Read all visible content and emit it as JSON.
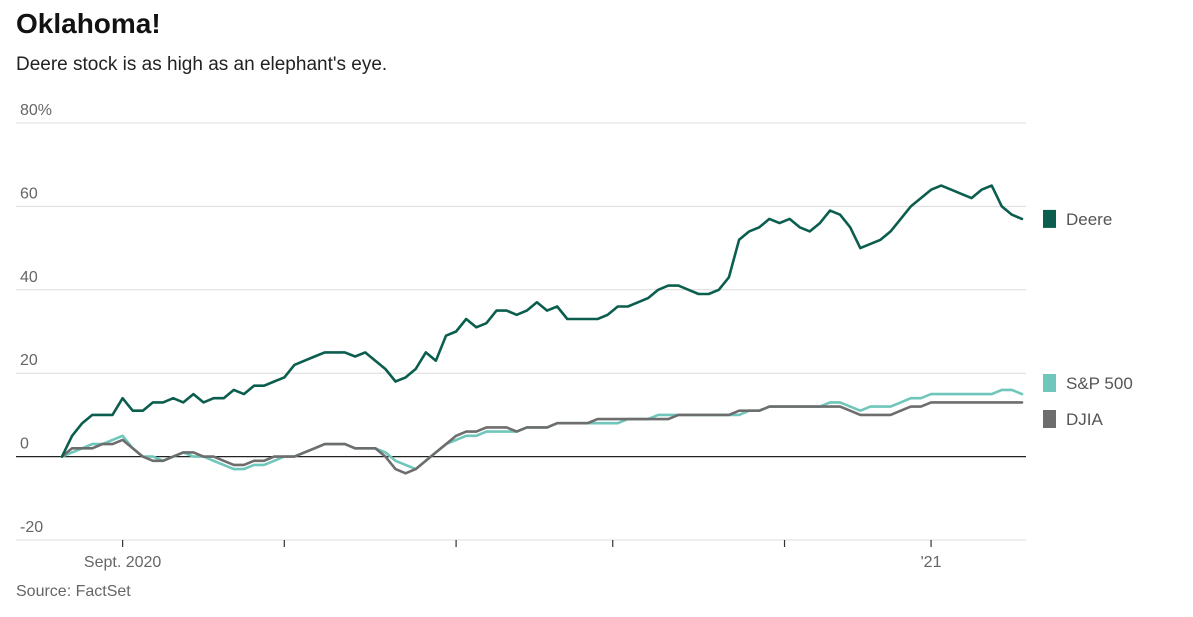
{
  "header": {
    "title": "Oklahoma!",
    "subtitle": "Deere stock is as high as an elephant's eye."
  },
  "footer": {
    "source": "Source: FactSet"
  },
  "chart_data": {
    "type": "line",
    "title": "Oklahoma!",
    "subtitle": "Deere stock is as high as an elephant's eye.",
    "ylim": [
      -20,
      80
    ],
    "yticks": [
      {
        "value": 80,
        "label": "80%"
      },
      {
        "value": 60,
        "label": "60"
      },
      {
        "value": 40,
        "label": "40"
      },
      {
        "value": 20,
        "label": "20"
      },
      {
        "value": 0,
        "label": "0"
      },
      {
        "value": -20,
        "label": "-20"
      }
    ],
    "x_domain": [
      0,
      190
    ],
    "xticks": [
      {
        "value": 12,
        "label": "Sept. 2020"
      },
      {
        "value": 44,
        "label": ""
      },
      {
        "value": 78,
        "label": ""
      },
      {
        "value": 109,
        "label": ""
      },
      {
        "value": 143,
        "label": ""
      },
      {
        "value": 172,
        "label": "'21"
      }
    ],
    "grid": true,
    "legend": "right",
    "series": [
      {
        "name": "Deere",
        "color": "#0b5e4e",
        "x": [
          0,
          2,
          4,
          6,
          8,
          10,
          12,
          14,
          16,
          18,
          20,
          22,
          24,
          26,
          28,
          30,
          32,
          34,
          36,
          38,
          40,
          42,
          44,
          46,
          48,
          50,
          52,
          54,
          56,
          58,
          60,
          62,
          64,
          66,
          68,
          70,
          72,
          74,
          76,
          78,
          80,
          82,
          84,
          86,
          88,
          90,
          92,
          94,
          96,
          98,
          100,
          102,
          104,
          106,
          108,
          110,
          112,
          114,
          116,
          118,
          120,
          122,
          124,
          126,
          128,
          130,
          132,
          134,
          136,
          138,
          140,
          142,
          144,
          146,
          148,
          150,
          152,
          154,
          156,
          158,
          160,
          162,
          164,
          166,
          168,
          170,
          172,
          174,
          176,
          178,
          180,
          182,
          184,
          186,
          188,
          190
        ],
        "values": [
          0,
          5,
          8,
          10,
          10,
          10,
          14,
          11,
          11,
          13,
          13,
          14,
          13,
          15,
          13,
          14,
          14,
          16,
          15,
          17,
          17,
          18,
          19,
          22,
          23,
          24,
          25,
          25,
          25,
          24,
          25,
          23,
          21,
          18,
          19,
          21,
          25,
          23,
          29,
          30,
          33,
          31,
          32,
          35,
          35,
          34,
          35,
          37,
          35,
          36,
          33,
          33,
          33,
          33,
          34,
          36,
          36,
          37,
          38,
          40,
          41,
          41,
          40,
          39,
          39,
          40,
          43,
          52,
          54,
          55,
          57,
          56,
          57,
          55,
          54,
          56,
          59,
          58,
          55,
          50,
          51,
          52,
          54,
          57,
          60,
          62,
          64,
          65,
          64,
          63,
          62,
          64,
          65,
          60,
          58,
          57
        ],
        "end_value": 57
      },
      {
        "name": "S&P 500",
        "color": "#6fc6ba",
        "x": [
          0,
          2,
          4,
          6,
          8,
          10,
          12,
          14,
          16,
          18,
          20,
          22,
          24,
          26,
          28,
          30,
          32,
          34,
          36,
          38,
          40,
          42,
          44,
          46,
          48,
          50,
          52,
          54,
          56,
          58,
          60,
          62,
          64,
          66,
          68,
          70,
          72,
          74,
          76,
          78,
          80,
          82,
          84,
          86,
          88,
          90,
          92,
          94,
          96,
          98,
          100,
          102,
          104,
          106,
          108,
          110,
          112,
          114,
          116,
          118,
          120,
          122,
          124,
          126,
          128,
          130,
          132,
          134,
          136,
          138,
          140,
          142,
          144,
          146,
          148,
          150,
          152,
          154,
          156,
          158,
          160,
          162,
          164,
          166,
          168,
          170,
          172,
          174,
          176,
          178,
          180,
          182,
          184,
          186,
          188,
          190
        ],
        "values": [
          0,
          1,
          2,
          3,
          3,
          4,
          5,
          2,
          0,
          0,
          -1,
          0,
          1,
          0,
          0,
          -1,
          -2,
          -3,
          -3,
          -2,
          -2,
          -1,
          0,
          0,
          1,
          2,
          3,
          3,
          3,
          2,
          2,
          2,
          1,
          -1,
          -2,
          -3,
          -1,
          1,
          3,
          4,
          5,
          5,
          6,
          6,
          6,
          6,
          7,
          7,
          7,
          8,
          8,
          8,
          8,
          8,
          8,
          8,
          9,
          9,
          9,
          10,
          10,
          10,
          10,
          10,
          10,
          10,
          10,
          10,
          11,
          11,
          12,
          12,
          12,
          12,
          12,
          12,
          13,
          13,
          12,
          11,
          12,
          12,
          12,
          13,
          14,
          14,
          15,
          15,
          15,
          15,
          15,
          15,
          15,
          16,
          16,
          15
        ],
        "end_value": 15
      },
      {
        "name": "DJIA",
        "color": "#6d6d6d",
        "x": [
          0,
          2,
          4,
          6,
          8,
          10,
          12,
          14,
          16,
          18,
          20,
          22,
          24,
          26,
          28,
          30,
          32,
          34,
          36,
          38,
          40,
          42,
          44,
          46,
          48,
          50,
          52,
          54,
          56,
          58,
          60,
          62,
          64,
          66,
          68,
          70,
          72,
          74,
          76,
          78,
          80,
          82,
          84,
          86,
          88,
          90,
          92,
          94,
          96,
          98,
          100,
          102,
          104,
          106,
          108,
          110,
          112,
          114,
          116,
          118,
          120,
          122,
          124,
          126,
          128,
          130,
          132,
          134,
          136,
          138,
          140,
          142,
          144,
          146,
          148,
          150,
          152,
          154,
          156,
          158,
          160,
          162,
          164,
          166,
          168,
          170,
          172,
          174,
          176,
          178,
          180,
          182,
          184,
          186,
          188,
          190
        ],
        "values": [
          0,
          2,
          2,
          2,
          3,
          3,
          4,
          2,
          0,
          -1,
          -1,
          0,
          1,
          1,
          0,
          0,
          -1,
          -2,
          -2,
          -1,
          -1,
          0,
          0,
          0,
          1,
          2,
          3,
          3,
          3,
          2,
          2,
          2,
          0,
          -3,
          -4,
          -3,
          -1,
          1,
          3,
          5,
          6,
          6,
          7,
          7,
          7,
          6,
          7,
          7,
          7,
          8,
          8,
          8,
          8,
          9,
          9,
          9,
          9,
          9,
          9,
          9,
          9,
          10,
          10,
          10,
          10,
          10,
          10,
          11,
          11,
          11,
          12,
          12,
          12,
          12,
          12,
          12,
          12,
          12,
          11,
          10,
          10,
          10,
          10,
          11,
          12,
          12,
          13,
          13,
          13,
          13,
          13,
          13,
          13,
          13,
          13,
          13
        ],
        "end_value": 13
      }
    ]
  }
}
